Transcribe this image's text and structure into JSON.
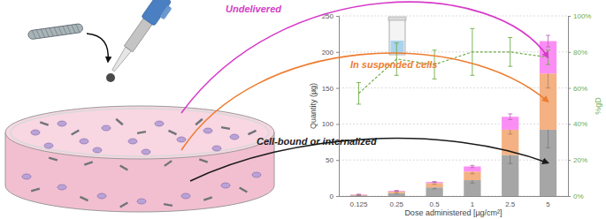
{
  "chart_data": {
    "type": "bar",
    "stacked": true,
    "grid": true,
    "x_label": "Dose administered [µg/cm²]",
    "y_label": "Quantity (µg)",
    "categories": [
      "0.125",
      "0.25",
      "0.5",
      "1",
      "2.5",
      "5"
    ],
    "ylim": [
      0,
      250
    ],
    "yticks": [
      0,
      50,
      100,
      150,
      200,
      250
    ],
    "y2lim": [
      0,
      100
    ],
    "y2ticks": [
      {
        "value": 0,
        "label": "0%"
      },
      {
        "value": 20,
        "label": "20%"
      },
      {
        "value": 40,
        "label": "40%"
      },
      {
        "value": 60,
        "label": "60%"
      },
      {
        "value": 80,
        "label": "80%"
      },
      {
        "value": 100,
        "label": "100%"
      }
    ],
    "series": [
      {
        "name": "Cell-bound or internalized",
        "color": "#a6a6a6",
        "values": [
          1.0,
          4.0,
          12,
          22,
          57,
          92
        ],
        "errors": [
          0.2,
          0.6,
          2,
          4,
          12,
          25
        ]
      },
      {
        "name": "In suspended cells",
        "color": "#f4b183",
        "values": [
          0.8,
          2.5,
          6,
          12,
          35,
          78
        ],
        "errors": [
          0.2,
          0.6,
          1.5,
          3,
          6,
          20
        ]
      },
      {
        "name": "Undelivered",
        "color": "#fb8ef5",
        "values": [
          0.4,
          0.8,
          1.5,
          7,
          18,
          45
        ],
        "errors": [
          0.1,
          0.3,
          0.5,
          1.5,
          4,
          8
        ]
      },
      {
        "name": "%gD",
        "type": "line",
        "axis": "y2",
        "line_style": "dashed",
        "color": "#70ad47",
        "values": [
          57,
          76,
          73,
          80,
          80,
          77
        ],
        "errors": [
          6,
          9,
          8,
          13,
          8,
          4
        ]
      }
    ]
  }
}
